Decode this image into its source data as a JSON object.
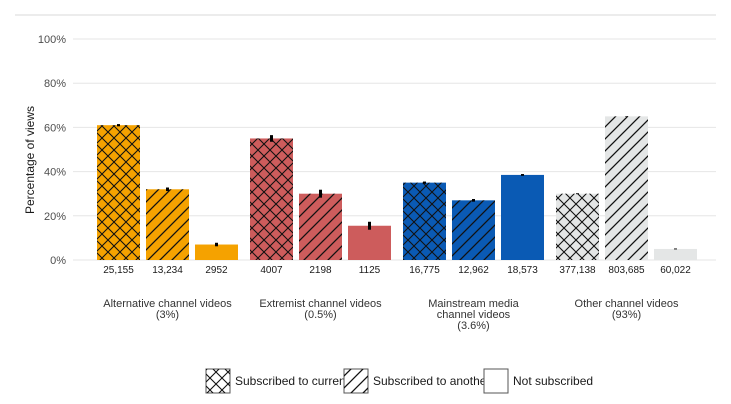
{
  "chart_data": {
    "type": "bar",
    "ylabel": "Percentage of views",
    "ylim": [
      0,
      100
    ],
    "ytick_labels": [
      "0%",
      "20%",
      "40%",
      "60%",
      "80%",
      "100%"
    ],
    "grid": true,
    "legend_position": "bottom",
    "groups": [
      {
        "label_lines": [
          "Alternative channel videos",
          "(3%)"
        ],
        "color": "#f5a200",
        "bars": [
          {
            "series": "Subscribed to current",
            "value": 61,
            "error": 0.5,
            "count": "25,155"
          },
          {
            "series": "Subscribed to another",
            "value": 32,
            "error": 0.8,
            "count": "13,234"
          },
          {
            "series": "Not subscribed",
            "value": 7,
            "error": 0.8,
            "count": "2952"
          }
        ]
      },
      {
        "label_lines": [
          "Extremist channel videos",
          "(0.5%)"
        ],
        "color": "#cd5c5c",
        "bars": [
          {
            "series": "Subscribed to current",
            "value": 55,
            "error": 1.5,
            "count": "4007"
          },
          {
            "series": "Subscribed to another",
            "value": 30,
            "error": 1.8,
            "count": "2198"
          },
          {
            "series": "Not subscribed",
            "value": 15.5,
            "error": 1.8,
            "count": "1125"
          }
        ]
      },
      {
        "label_lines": [
          "Mainstream media",
          "channel videos",
          "(3.6%)"
        ],
        "color": "#0a5ab4",
        "bars": [
          {
            "series": "Subscribed to current",
            "value": 35,
            "error": 0.5,
            "count": "16,775"
          },
          {
            "series": "Subscribed to another",
            "value": 27,
            "error": 0.6,
            "count": "12,962"
          },
          {
            "series": "Not subscribed",
            "value": 38.5,
            "error": 0.4,
            "count": "18,573"
          }
        ]
      },
      {
        "label_lines": [
          "Other channel videos",
          "(93%)"
        ],
        "color": "#e4e6e6",
        "bars": [
          {
            "series": "Subscribed to current",
            "value": 30,
            "error": 0.2,
            "count": "377,138"
          },
          {
            "series": "Subscribed to another",
            "value": 65,
            "error": 0.1,
            "count": "803,685"
          },
          {
            "series": "Not subscribed",
            "value": 5,
            "error": 0.2,
            "count": "60,022"
          }
        ]
      }
    ],
    "legend": [
      {
        "label": "Subscribed to current",
        "pattern": "crosshatch"
      },
      {
        "label": "Subscribed to another",
        "pattern": "diagonal"
      },
      {
        "label": "Not subscribed",
        "pattern": "none"
      }
    ]
  }
}
